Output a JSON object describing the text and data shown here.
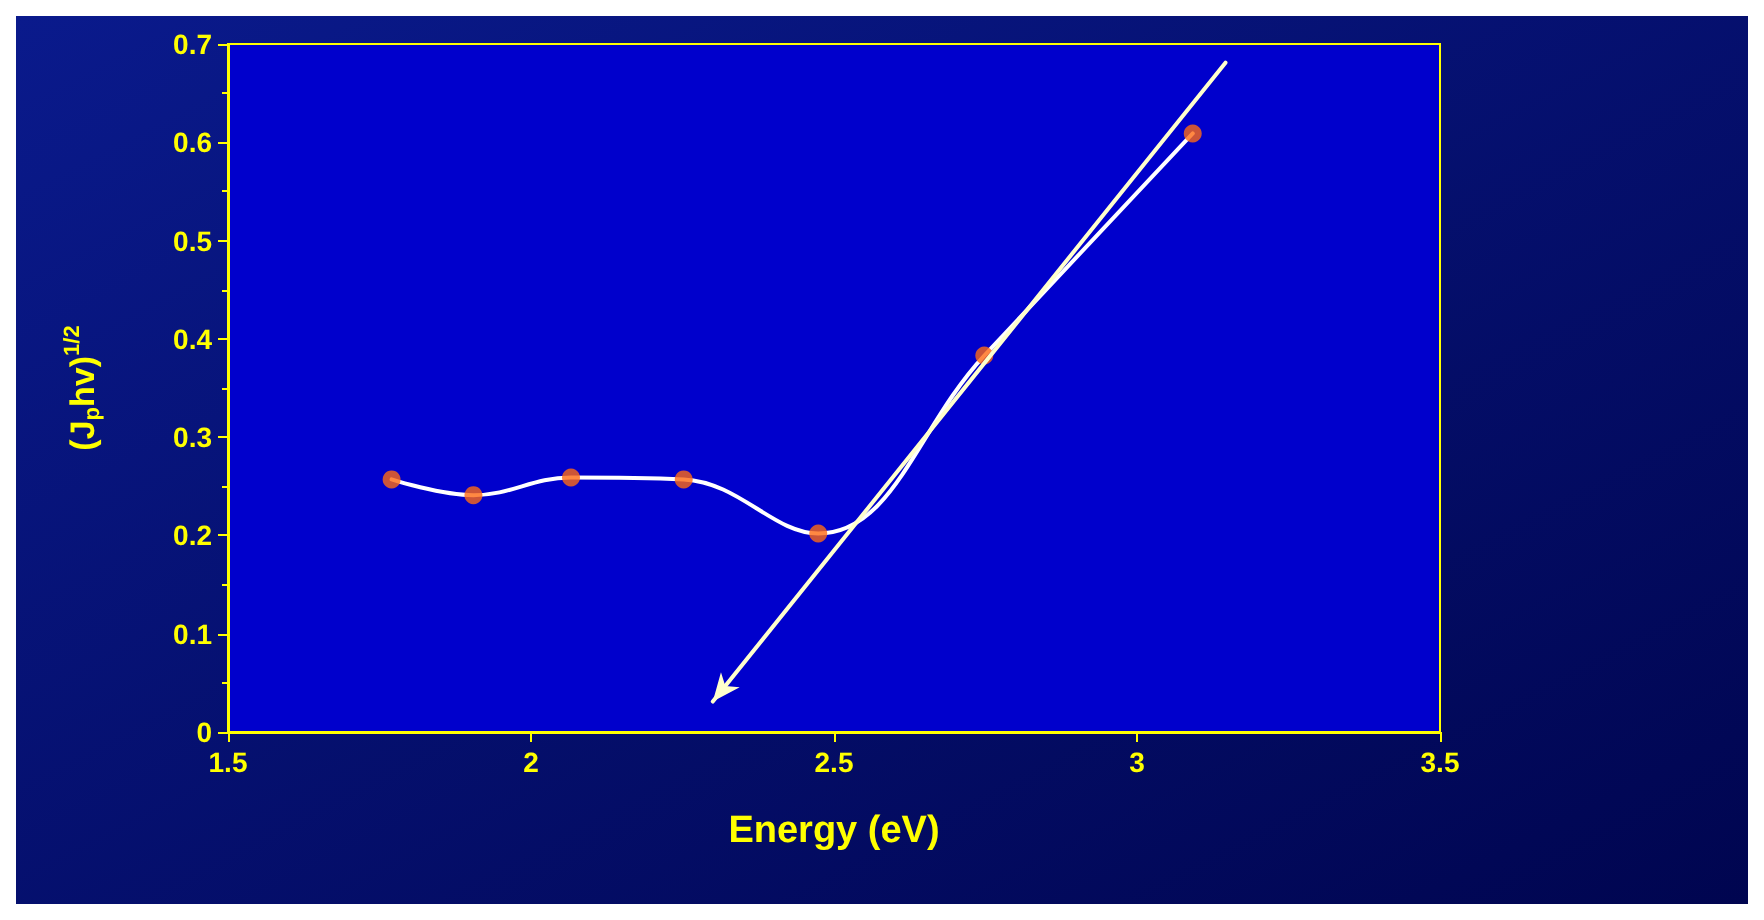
{
  "chart_data": {
    "type": "line",
    "xlabel": "Energy (eV)",
    "ylabel": "(J$_{p}$hv)$^{1/2}$",
    "xlim": [
      1.5,
      3.5
    ],
    "xticks": [
      1.5,
      2,
      2.5,
      3,
      3.5
    ],
    "ylim": [
      0,
      0.7
    ],
    "yticks": [
      0,
      0.1,
      0.2,
      0.3,
      0.4,
      0.5,
      0.6,
      0.7
    ],
    "grid": false,
    "series": [
      {
        "color": "#ffffff",
        "marker": "none",
        "x": [
          1.77,
          1.905,
          2.066,
          2.252,
          2.474,
          2.748,
          3.092
        ],
        "values": [
          0.257,
          0.241,
          0.259,
          0.257,
          0.202,
          0.383,
          0.609
        ]
      },
      {
        "type": "scatter",
        "color": "#ff6a13",
        "marker": "circle",
        "x": [
          1.77,
          1.905,
          2.066,
          2.252,
          2.474,
          2.748,
          3.092
        ],
        "values": [
          0.257,
          0.241,
          0.259,
          0.257,
          0.202,
          0.383,
          0.609
        ]
      },
      {
        "type": "line",
        "color": "#ffffcc",
        "x": [
          3.146,
          2.3
        ],
        "values": [
          0.681,
          0.031
        ]
      }
    ]
  }
}
